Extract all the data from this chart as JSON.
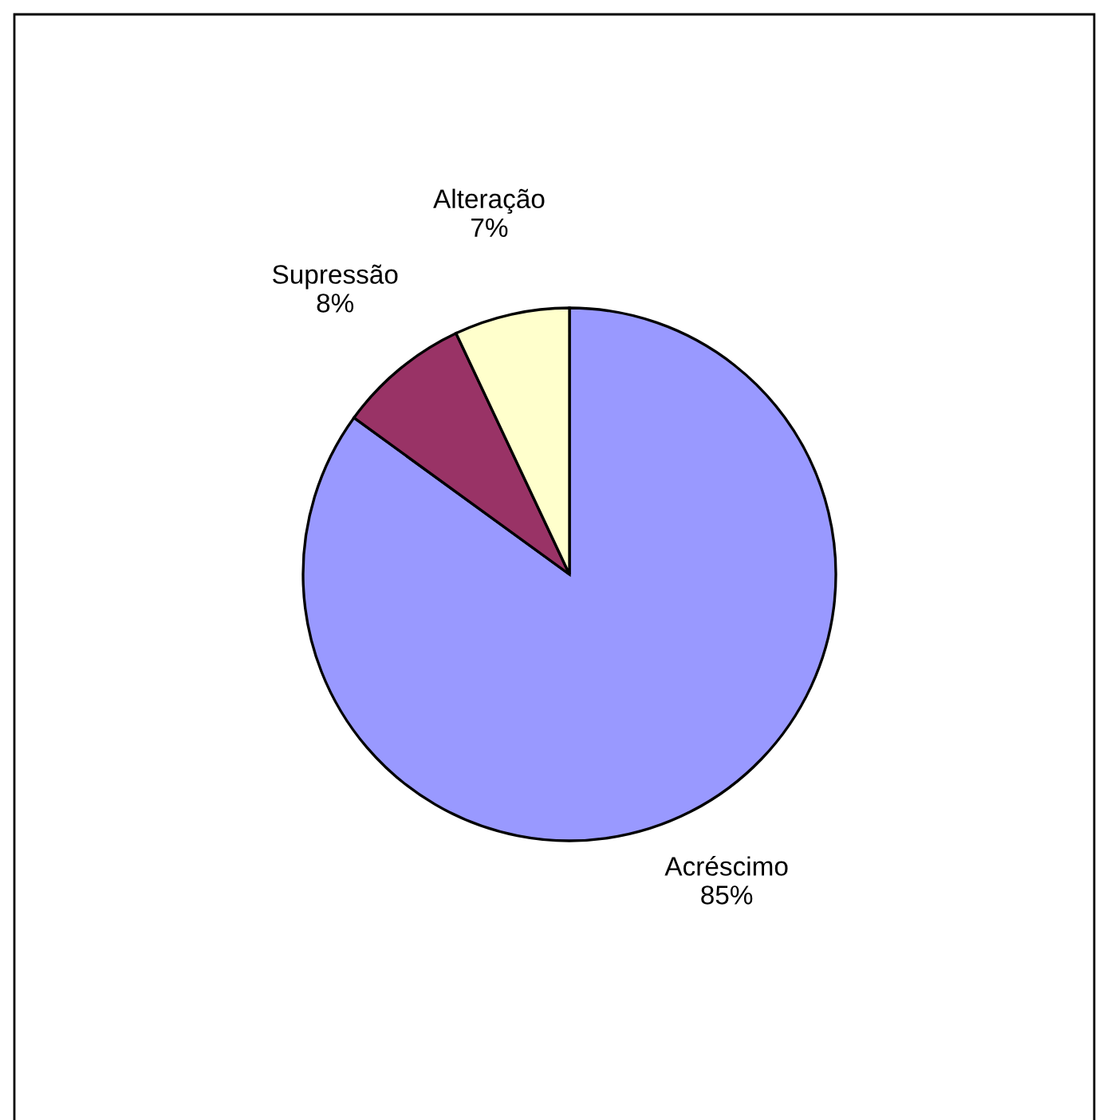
{
  "chart_data": {
    "type": "pie",
    "categories": [
      "Acréscimo",
      "Supressão",
      "Alteração"
    ],
    "values": [
      85,
      8,
      7
    ],
    "colors": [
      "#9999ff",
      "#993366",
      "#ffffcc"
    ],
    "value_labels": [
      "85%",
      "8%",
      "7%"
    ],
    "legend": false
  }
}
